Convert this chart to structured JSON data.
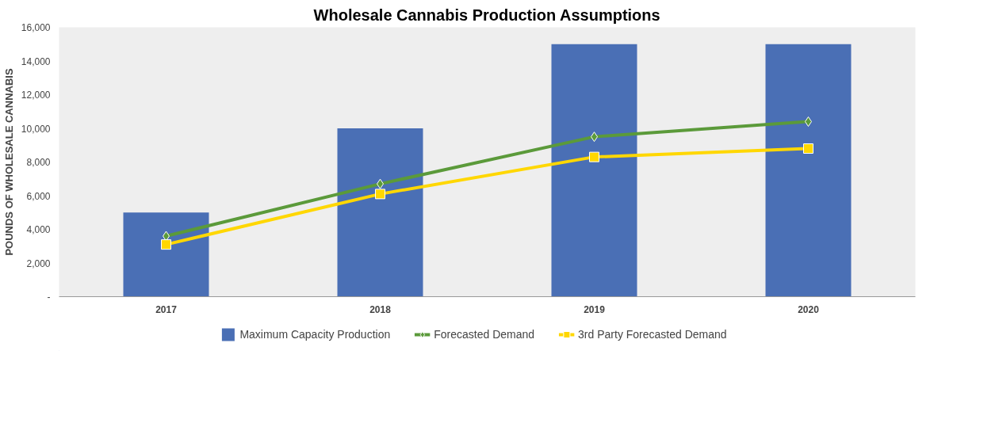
{
  "chart_data": {
    "type": "bar",
    "title": "Wholesale Cannabis Production Assumptions",
    "ylabel": "POUNDS OF WHOLESALE CANNABIS",
    "categories": [
      "2017",
      "2018",
      "2019",
      "2020"
    ],
    "series": [
      {
        "name": "Maximum Capacity Production",
        "color": "#4a6fb5",
        "values": [
          5000,
          10000,
          15000,
          15000
        ]
      },
      {
        "name": "Forecasted Demand",
        "type": "line",
        "color": "#5b9a3a",
        "marker": "diamond",
        "values": [
          3600,
          6700,
          9500,
          10400
        ]
      },
      {
        "name": "3rd Party Forecasted Demand",
        "type": "line",
        "color": "#ffd700",
        "marker": "square",
        "values": [
          3100,
          6100,
          8300,
          8800
        ]
      }
    ],
    "ylim": [
      0,
      16000
    ],
    "yticks": [
      {
        "value": 0,
        "label": "-"
      },
      {
        "value": 2000,
        "label": "2,000"
      },
      {
        "value": 4000,
        "label": "4,000"
      },
      {
        "value": 6000,
        "label": "6,000"
      },
      {
        "value": 8000,
        "label": "8,000"
      },
      {
        "value": 10000,
        "label": "10,000"
      },
      {
        "value": 12000,
        "label": "12,000"
      },
      {
        "value": 14000,
        "label": "14,000"
      },
      {
        "value": 16000,
        "label": "16,000"
      }
    ],
    "grid": false,
    "legend": "bottom"
  }
}
